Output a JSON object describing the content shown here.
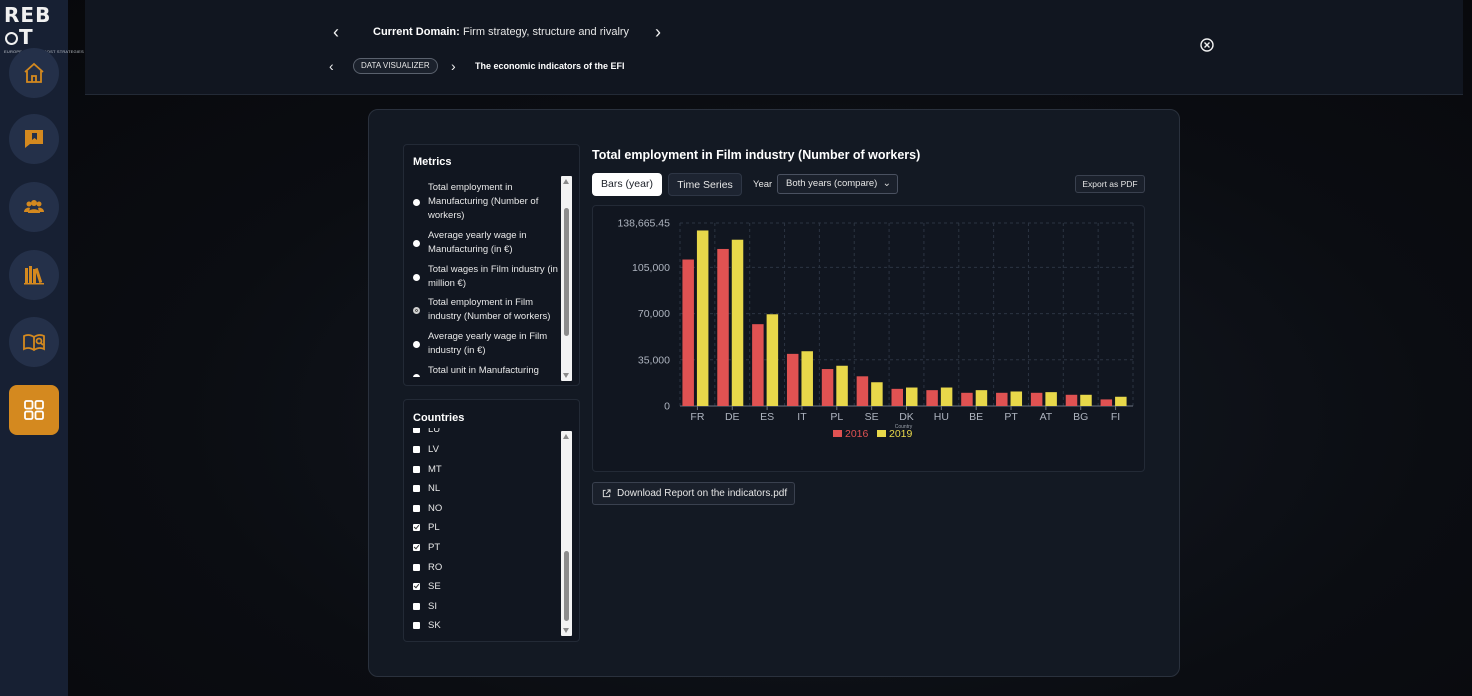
{
  "brand": {
    "logo_text": "REB",
    "logo_text2": "T",
    "logo_sub": "EUROPEAN FILM BOOST STRATEGIES"
  },
  "sidebar": {
    "items": [
      {
        "name": "home",
        "icon": "home-icon"
      },
      {
        "name": "bookmark",
        "icon": "bookmark-icon"
      },
      {
        "name": "users",
        "icon": "users-icon"
      },
      {
        "name": "library",
        "icon": "books-icon"
      },
      {
        "name": "reader",
        "icon": "book-reader-icon"
      },
      {
        "name": "dashboard",
        "icon": "grid-icon",
        "active": true
      }
    ]
  },
  "header": {
    "domain_label": "Current Domain:",
    "domain_value": "Firm strategy, structure and rivalry",
    "breadcrumb_badge": "DATA VISUALIZER",
    "breadcrumb_current": "The economic indicators of the EFI"
  },
  "metrics": {
    "title": "Metrics",
    "items": [
      {
        "label": "Total employment in Manufacturing (Number of workers)",
        "selected": false
      },
      {
        "label": "Average yearly wage in Manufacturing (in €)",
        "selected": false
      },
      {
        "label": "Total wages in Film industry (in million €)",
        "selected": false
      },
      {
        "label": "Total employment in Film industry (Number of workers)",
        "selected": true
      },
      {
        "label": "Average yearly wage in Film industry (in €)",
        "selected": false
      },
      {
        "label": "Total unit in Manufacturing",
        "selected": false
      }
    ]
  },
  "countries": {
    "title": "Countries",
    "items": [
      {
        "code": "LU",
        "checked": false
      },
      {
        "code": "LV",
        "checked": false
      },
      {
        "code": "MT",
        "checked": false
      },
      {
        "code": "NL",
        "checked": false
      },
      {
        "code": "NO",
        "checked": false
      },
      {
        "code": "PL",
        "checked": true
      },
      {
        "code": "PT",
        "checked": true
      },
      {
        "code": "RO",
        "checked": false
      },
      {
        "code": "SE",
        "checked": true
      },
      {
        "code": "SI",
        "checked": false
      },
      {
        "code": "SK",
        "checked": false
      }
    ]
  },
  "controls": {
    "tab_bars": "Bars (year)",
    "tab_timeseries": "Time Series",
    "year_label": "Year",
    "year_selected": "Both years (compare)",
    "export_label": "Export as PDF",
    "download_label": "Download Report on the indicators.pdf"
  },
  "colors": {
    "series_2016": "#e05252",
    "series_2019": "#e8d84a",
    "accent": "#d4891f"
  },
  "chart_data": {
    "type": "bar",
    "title": "Total employment in Film industry (Number of workers)",
    "xlabel": "Country",
    "ylabel": "",
    "ylim": [
      0,
      138665.45
    ],
    "yticks": [
      "0",
      "35,000",
      "70,000",
      "105,000",
      "138,665.45"
    ],
    "ytick_values": [
      0,
      35000,
      70000,
      105000,
      138665.45
    ],
    "grid": true,
    "legend_position": "bottom",
    "categories": [
      "FR",
      "DE",
      "ES",
      "IT",
      "PL",
      "SE",
      "DK",
      "HU",
      "BE",
      "PT",
      "AT",
      "BG",
      "FI"
    ],
    "series": [
      {
        "name": "2016",
        "values": [
          111000,
          119000,
          62000,
          39500,
          28000,
          22500,
          13000,
          12000,
          10000,
          10000,
          10000,
          8500,
          5000
        ]
      },
      {
        "name": "2019",
        "values": [
          133000,
          126000,
          69500,
          41500,
          30500,
          18000,
          14000,
          14000,
          12000,
          11000,
          10500,
          8500,
          7000
        ]
      }
    ]
  }
}
